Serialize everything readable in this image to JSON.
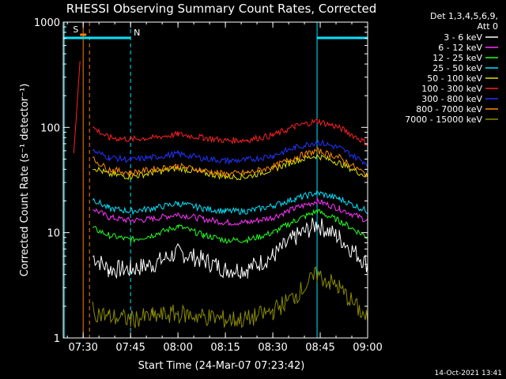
{
  "colors": {
    "background": "#000000",
    "axis": "#ffffff",
    "attenuator_line": "#ff7f00",
    "night_line": "#00e5ff"
  },
  "chart_data": {
    "type": "line",
    "title": "RHESSI Observing Summary Count Rates, Corrected",
    "xlabel": "Start Time (24-Mar-07 07:23:42)",
    "ylabel": "Corrected Count Rate (s⁻¹ detector⁻¹)",
    "x_unit": "minutes since 07:23:42",
    "xlim": [
      "07:23:42",
      "09:00:00"
    ],
    "ylim": [
      1,
      1000
    ],
    "y_scale": "log",
    "x_ticks": [
      "07:30",
      "07:45",
      "08:00",
      "08:15",
      "08:30",
      "08:45",
      "09:00"
    ],
    "y_ticks": [
      "1",
      "10",
      "100",
      "1000"
    ],
    "legend_header": [
      "Det 1,3,4,5,6,9,",
      "Att 0"
    ],
    "legend_position": "right",
    "footer_timestamp": "14-Oct-2021 13:41",
    "flags": [
      {
        "label": "S",
        "color": "#ff7f00",
        "start": "07:29",
        "end": "07:31"
      },
      {
        "label": "N",
        "color": "#00e5ff",
        "start": "07:23:42",
        "end": "07:45"
      },
      {
        "label": "",
        "color": "#00e5ff",
        "start": "08:44",
        "end": "09:00"
      }
    ],
    "vlines": [
      {
        "time": "07:24",
        "color": "#00e5ff",
        "style": "solid"
      },
      {
        "time": "07:30",
        "color": "#ff7f00",
        "style": "solid"
      },
      {
        "time": "07:32",
        "color": "#ff7f00",
        "style": "dashed"
      },
      {
        "time": "07:45",
        "color": "#00e5ff",
        "style": "dashed"
      },
      {
        "time": "08:44",
        "color": "#00e5ff",
        "style": "solid"
      },
      {
        "time": "09:00",
        "color": "#00e5ff",
        "style": "dashed"
      }
    ],
    "x_samples": [
      "07:24",
      "07:27",
      "07:29",
      "07:31",
      "07:33",
      "07:38",
      "07:45",
      "07:52",
      "08:00",
      "08:08",
      "08:15",
      "08:22",
      "08:30",
      "08:37",
      "08:44",
      "08:51",
      "09:00"
    ],
    "series": [
      {
        "name": "3 - 6 keV",
        "color": "#ffffff",
        "values": [
          null,
          null,
          null,
          null,
          6,
          4.5,
          4.5,
          5,
          6.5,
          5.5,
          4.5,
          4.5,
          6,
          9,
          12,
          9,
          5
        ]
      },
      {
        "name": "6 - 12 keV",
        "color": "#ff33ff",
        "values": [
          null,
          null,
          null,
          null,
          17,
          14,
          13,
          13.5,
          15,
          13.5,
          12.5,
          12.5,
          14,
          17,
          20,
          17,
          13
        ]
      },
      {
        "name": "12 - 25 keV",
        "color": "#22ff22",
        "values": [
          null,
          null,
          null,
          null,
          11,
          9.5,
          8.5,
          9.5,
          11.5,
          9.5,
          8.5,
          8.5,
          10,
          13,
          16,
          13,
          9
        ]
      },
      {
        "name": "25 - 50 keV",
        "color": "#00e5ff",
        "values": [
          null,
          null,
          null,
          null,
          21,
          17,
          16,
          17,
          19,
          17,
          16,
          16,
          18,
          21,
          24,
          21,
          16
        ]
      },
      {
        "name": "50 - 100 keV",
        "color": "#e0e000",
        "values": [
          null,
          null,
          null,
          null,
          42,
          36,
          34,
          37,
          41,
          37,
          34,
          34,
          40,
          48,
          54,
          46,
          34
        ]
      },
      {
        "name": "100 - 300 keV",
        "color": "#ff2020",
        "values": [
          null,
          55,
          450,
          null,
          100,
          80,
          77,
          80,
          86,
          80,
          75,
          76,
          84,
          102,
          115,
          100,
          70
        ]
      },
      {
        "name": "300 - 800 keV",
        "color": "#2233ff",
        "values": [
          null,
          null,
          null,
          null,
          60,
          52,
          49,
          52,
          56,
          51,
          48,
          49,
          54,
          64,
          73,
          64,
          45
        ]
      },
      {
        "name": "800 - 7000 keV",
        "color": "#ff8c00",
        "values": [
          null,
          null,
          null,
          null,
          50,
          40,
          37,
          40,
          43,
          39,
          36,
          37,
          42,
          52,
          60,
          52,
          35
        ]
      },
      {
        "name": "7000 - 15000 keV",
        "color": "#8b8b00",
        "values": [
          null,
          null,
          null,
          null,
          1.8,
          1.6,
          1.5,
          1.6,
          1.7,
          1.6,
          1.5,
          1.5,
          1.8,
          2.5,
          4,
          3,
          1.5
        ]
      }
    ]
  }
}
